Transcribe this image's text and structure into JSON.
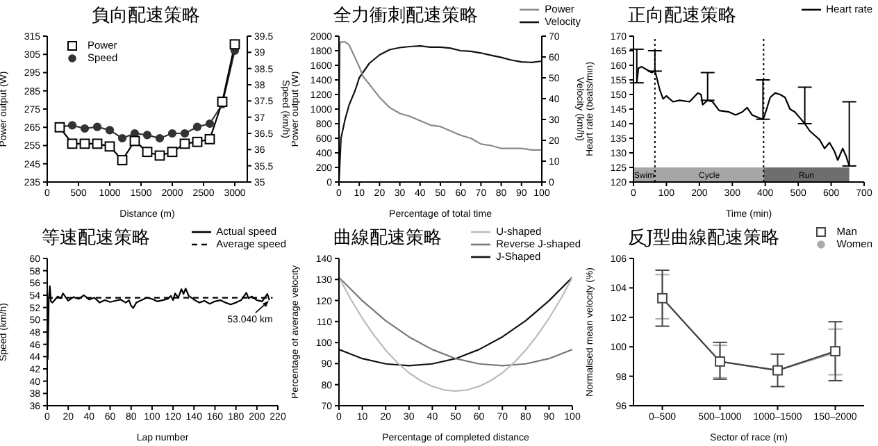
{
  "chart_data": [
    {
      "type": "line",
      "title": "負向配速策略",
      "xlabel": "Distance (m)",
      "ylabel": "Power output (W)",
      "y2label": "Speed (km/h)",
      "legend": "top left",
      "x": [
        200,
        400,
        600,
        800,
        1000,
        1200,
        1400,
        1600,
        1800,
        2000,
        2200,
        2400,
        2600,
        2800,
        3000
      ],
      "series": [
        {
          "name": "Power",
          "color": "#000000",
          "marker": "square",
          "values": [
            265,
            256,
            256,
            256,
            254.5,
            247,
            257.5,
            251.5,
            249.5,
            251.5,
            256,
            257,
            258.5,
            279,
            310.5
          ]
        },
        {
          "name": "Speed",
          "color": "#333333",
          "marker": "circle",
          "axis": "y2",
          "values": [
            36.7,
            36.75,
            36.65,
            36.7,
            36.6,
            36.35,
            36.5,
            36.45,
            36.35,
            36.5,
            36.5,
            36.7,
            36.8,
            37.4,
            39.05
          ]
        }
      ],
      "xlim": [
        0,
        3200
      ],
      "xticks": [
        0,
        500,
        1000,
        1500,
        2000,
        2500,
        3000
      ],
      "ylim": [
        235,
        315
      ],
      "yticks": [
        235,
        245,
        255,
        265,
        275,
        285,
        295,
        305,
        315
      ],
      "y2lim": [
        35,
        39.5
      ],
      "y2ticks": [
        35,
        35.5,
        36,
        36.5,
        37,
        37.5,
        38,
        38.5,
        39,
        39.5
      ]
    },
    {
      "type": "line",
      "title": "全力衝刺配速策略",
      "xlabel": "Percentage of total time",
      "ylabel": "Power output (W)",
      "y2label": "Velocity (km/h)",
      "legend": "top right",
      "series": [
        {
          "name": "Power",
          "color": "#888888",
          "x": [
            0,
            0.5,
            1,
            3,
            5,
            7,
            10,
            12,
            15,
            20,
            25,
            30,
            35,
            40,
            45,
            50,
            55,
            60,
            65,
            70,
            75,
            80,
            85,
            90,
            95,
            100
          ],
          "values": [
            500,
            1900,
            1920,
            1920,
            1880,
            1760,
            1580,
            1440,
            1340,
            1160,
            1020,
            940,
            900,
            840,
            780,
            760,
            700,
            640,
            600,
            520,
            500,
            460,
            460,
            460,
            440,
            440
          ]
        },
        {
          "name": "Velocity",
          "color": "#111111",
          "axis": "y2",
          "x": [
            0,
            1,
            3,
            5,
            8,
            10,
            15,
            20,
            25,
            30,
            35,
            40,
            45,
            50,
            55,
            60,
            65,
            70,
            75,
            80,
            85,
            90,
            95,
            100
          ],
          "values": [
            0,
            21,
            30,
            37,
            44,
            50,
            57,
            61,
            63.5,
            64.5,
            65,
            65.3,
            64.7,
            64.7,
            64.2,
            63,
            62.7,
            61.9,
            60.8,
            59.8,
            58.5,
            57.6,
            57.4,
            58
          ]
        }
      ],
      "xlim": [
        0,
        100
      ],
      "xticks": [
        0,
        10,
        20,
        30,
        40,
        50,
        60,
        70,
        80,
        90,
        100
      ],
      "ylim": [
        0,
        2000
      ],
      "yticks": [
        0,
        200,
        400,
        600,
        800,
        1000,
        1200,
        1400,
        1600,
        1800,
        2000
      ],
      "y2lim": [
        0,
        70
      ],
      "y2ticks": [
        0,
        10,
        20,
        30,
        40,
        50,
        60,
        70
      ]
    },
    {
      "type": "line",
      "title": "正向配速策略",
      "xlabel": "Time (min)",
      "ylabel": "Heart rate (beats/min)",
      "legend": "top right",
      "x": [
        10,
        15,
        25,
        40,
        55,
        65,
        70,
        80,
        90,
        100,
        120,
        140,
        170,
        195,
        205,
        210,
        225,
        240,
        260,
        290,
        310,
        330,
        345,
        360,
        380,
        393,
        400,
        415,
        430,
        445,
        460,
        475,
        490,
        505,
        520,
        535,
        550,
        565,
        580,
        595,
        610,
        620,
        635,
        645,
        655
      ],
      "series": [
        {
          "name": "Heart rate",
          "color": "#000000",
          "values": [
            154,
            159,
            159.5,
            158.5,
            157.5,
            158,
            156,
            151.5,
            148.5,
            149.5,
            147.5,
            148,
            147.5,
            150.5,
            150,
            146.5,
            148,
            147.5,
            144.5,
            144,
            143,
            144,
            145.5,
            143,
            142,
            141.5,
            143.5,
            149,
            150.5,
            150,
            149,
            145,
            144,
            142,
            140,
            137.5,
            136,
            134.5,
            131.5,
            133.5,
            130.5,
            127.5,
            131.5,
            129,
            125.5
          ],
          "errors": [
            [
              154,
              165.5
            ],
            null,
            null,
            null,
            null,
            [
              158,
              165
            ],
            null,
            null,
            null,
            null,
            null,
            null,
            null,
            null,
            null,
            null,
            [
              148,
              157.5
            ],
            null,
            null,
            null,
            null,
            null,
            null,
            null,
            null,
            [
              141.5,
              155
            ],
            null,
            null,
            null,
            null,
            null,
            null,
            null,
            null,
            [
              140,
              152.5
            ],
            null,
            null,
            null,
            null,
            null,
            null,
            null,
            null,
            null,
            [
              125.5,
              147.5
            ]
          ]
        }
      ],
      "bands": [
        {
          "axis": "x",
          "from": 0,
          "to": 65,
          "label": "Swim",
          "color": "#a6a6a6"
        },
        {
          "axis": "x",
          "from": 65,
          "to": 395,
          "label": "Cycle",
          "color": "#a6a6a6"
        },
        {
          "axis": "x",
          "from": 395,
          "to": 655,
          "label": "Run",
          "color": "#6e6e6e"
        }
      ],
      "ref_lines": [
        {
          "axis": "x",
          "value": 65,
          "color": "#000000",
          "line_style": "dotted"
        },
        {
          "axis": "x",
          "value": 395,
          "color": "#000000",
          "line_style": "dotted"
        }
      ],
      "xlim": [
        0,
        700
      ],
      "xticks": [
        0,
        100,
        200,
        300,
        400,
        500,
        600,
        700
      ],
      "ylim": [
        120,
        170
      ],
      "yticks": [
        120,
        125,
        130,
        135,
        140,
        145,
        150,
        155,
        160,
        165,
        170
      ]
    },
    {
      "type": "line",
      "title": "等速配速策略",
      "xlabel": "Lap number",
      "ylabel": "Speed (km/h)",
      "legend": "top right",
      "series": [
        {
          "name": "Actual speed",
          "color": "#000000",
          "x": [
            0.5,
            1.5,
            2.5,
            3.5,
            5,
            7,
            10,
            13,
            15,
            18,
            20,
            25,
            30,
            35,
            40,
            45,
            50,
            55,
            60,
            65,
            70,
            75,
            78,
            80,
            82,
            85,
            90,
            95,
            100,
            105,
            110,
            115,
            118,
            120,
            122,
            125,
            128,
            130,
            132,
            135,
            140,
            145,
            150,
            155,
            160,
            165,
            170,
            175,
            180,
            185,
            190,
            192,
            195,
            200,
            205,
            210,
            212
          ],
          "values": [
            43.5,
            53.5,
            55.5,
            53,
            52.8,
            53.2,
            53.8,
            53.5,
            54.3,
            53.6,
            53.1,
            53.7,
            53.4,
            54,
            53.3,
            53.6,
            52.8,
            53.2,
            52.9,
            53.1,
            53.3,
            52.8,
            53.2,
            52.3,
            51.9,
            52.8,
            53.2,
            53.6,
            53.4,
            53,
            53.2,
            53.4,
            53.9,
            53.2,
            54.3,
            53.6,
            55,
            54.2,
            55.1,
            53.9,
            53.3,
            52.8,
            53.1,
            52.6,
            53,
            53.2,
            52.8,
            52.5,
            52.8,
            53.2,
            54.4,
            53.5,
            53.8,
            53.2,
            53,
            54.2,
            53.2
          ]
        },
        {
          "name": "Average speed",
          "color": "#000000",
          "line_style": "dashed",
          "x": [
            0,
            215
          ],
          "values": [
            53.6,
            53.6
          ]
        }
      ],
      "annotations": [
        {
          "text": "53.040 km",
          "x": 212,
          "y": 53.2
        }
      ],
      "xlim": [
        0,
        220
      ],
      "xticks": [
        0,
        20,
        40,
        60,
        80,
        100,
        120,
        140,
        160,
        180,
        200,
        220
      ],
      "ylim": [
        36,
        60
      ],
      "yticks": [
        36,
        38,
        40,
        42,
        44,
        46,
        48,
        50,
        52,
        54,
        56,
        58,
        60
      ]
    },
    {
      "type": "line",
      "title": "曲線配速策略",
      "xlabel": "Percentage of completed distance",
      "ylabel": "Percentage of average velocity",
      "legend": "top right",
      "x": [
        0,
        10,
        20,
        30,
        40,
        50,
        60,
        70,
        80,
        90,
        100
      ],
      "series": [
        {
          "name": "U-shaped",
          "color": "#bbbbbb",
          "x": [
            0,
            5,
            10,
            15,
            20,
            25,
            30,
            35,
            40,
            45,
            50,
            55,
            60,
            65,
            70,
            75,
            80,
            85,
            90,
            95,
            100
          ],
          "values": [
            131,
            120.7,
            111.6,
            103.5,
            96.4,
            90.5,
            85.6,
            81.9,
            79.2,
            77.5,
            77,
            77.5,
            79.2,
            81.9,
            85.6,
            90.5,
            96.4,
            103.5,
            111.6,
            120.7,
            131
          ]
        },
        {
          "name": "Reverse J-shaped",
          "color": "#777777",
          "values": [
            131,
            119.9,
            110.4,
            102.7,
            96.7,
            92.4,
            89.9,
            89,
            89.9,
            92.4,
            96.7
          ]
        },
        {
          "name": "J-Shaped",
          "color": "#111111",
          "values": [
            96.7,
            92.4,
            89.9,
            89,
            89.9,
            92.4,
            96.7,
            102.7,
            110.4,
            119.9,
            131
          ]
        }
      ],
      "xlim": [
        0,
        100
      ],
      "xticks": [
        0,
        10,
        20,
        30,
        40,
        50,
        60,
        70,
        80,
        90,
        100
      ],
      "ylim": [
        70,
        140
      ],
      "yticks": [
        70,
        80,
        90,
        100,
        110,
        120,
        130,
        140
      ]
    },
    {
      "type": "line",
      "title": "反J型曲線配速策略",
      "xlabel": "Sector of race (m)",
      "ylabel": "Normalised mean velocity (%)",
      "legend": "top right",
      "categories": [
        "0–500",
        "500–1000",
        "1000–1500",
        "150–2000"
      ],
      "series": [
        {
          "name": "Man",
          "color": "#444444",
          "marker": "square",
          "values": [
            103.3,
            99,
            98.4,
            99.7
          ],
          "errors": [
            [
              101.4,
              105.2
            ],
            [
              97.8,
              100.3
            ],
            [
              97.3,
              99.5
            ],
            [
              97.7,
              101.7
            ]
          ]
        },
        {
          "name": "Women",
          "color": "#aaaaaa",
          "marker": "circle",
          "values": [
            103.3,
            99,
            98.4,
            99.6
          ],
          "errors": [
            [
              101.9,
              104.9
            ],
            [
              97.9,
              100.1
            ],
            null,
            [
              98.1,
              101.2
            ]
          ]
        }
      ],
      "ylim": [
        96,
        106
      ],
      "yticks": [
        96,
        98,
        100,
        102,
        104,
        106
      ]
    }
  ]
}
